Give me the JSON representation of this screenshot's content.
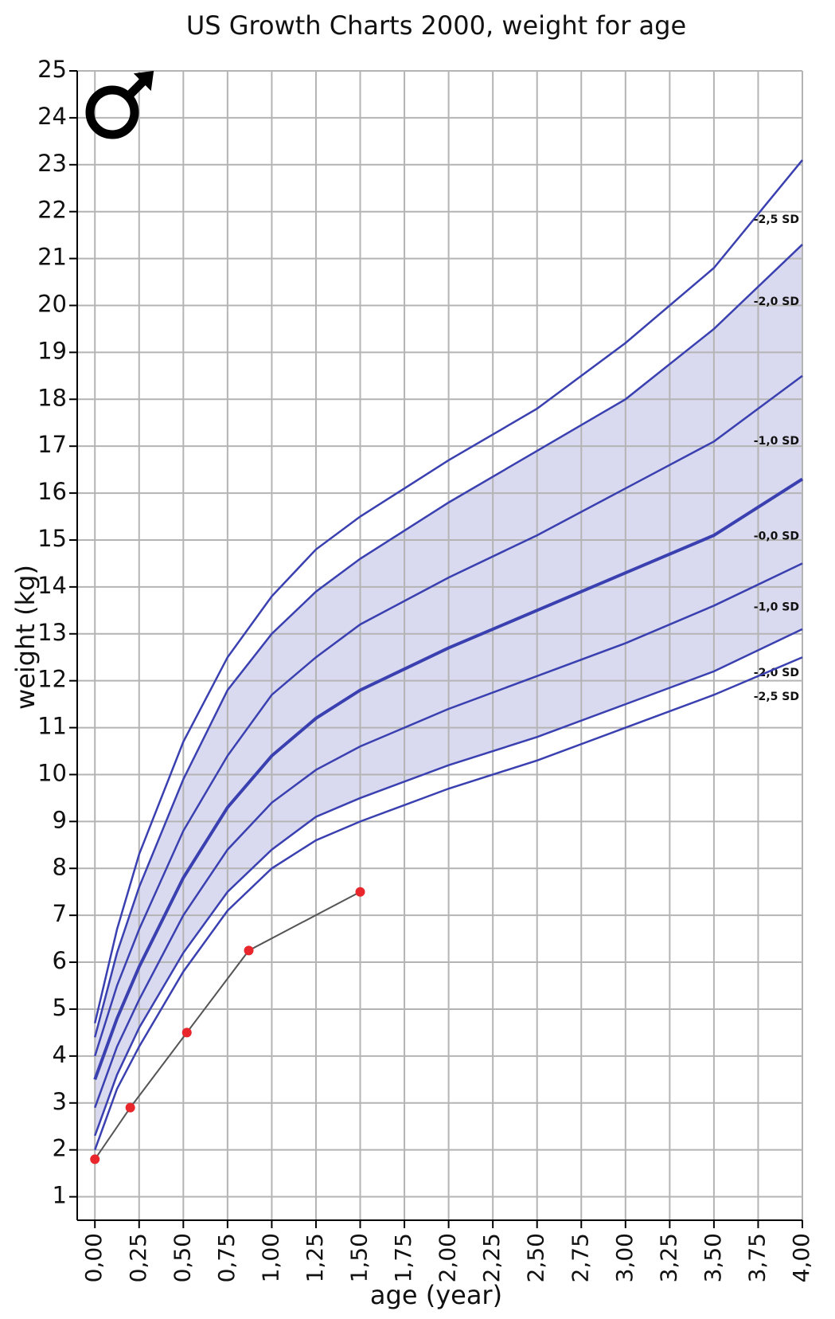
{
  "chart_data": {
    "type": "line",
    "title": "US Growth Charts 2000, weight for age",
    "x_label": "age (year)",
    "y_label": "weight (kg)",
    "xlim": [
      -0.1,
      4
    ],
    "ylim": [
      0.5,
      25
    ],
    "xticks": [
      {
        "value": 0,
        "label": "0,00"
      },
      {
        "value": 0.25,
        "label": "0,25"
      },
      {
        "value": 0.5,
        "label": "0,50"
      },
      {
        "value": 0.75,
        "label": "0,75"
      },
      {
        "value": 1,
        "label": "1,00"
      },
      {
        "value": 1.25,
        "label": "1,25"
      },
      {
        "value": 1.5,
        "label": "1,50"
      },
      {
        "value": 1.75,
        "label": "1,75"
      },
      {
        "value": 2,
        "label": "2,00"
      },
      {
        "value": 2.25,
        "label": "2,25"
      },
      {
        "value": 2.5,
        "label": "2,50"
      },
      {
        "value": 2.75,
        "label": "2,75"
      },
      {
        "value": 3,
        "label": "3,00"
      },
      {
        "value": 3.25,
        "label": "3,25"
      },
      {
        "value": 3.5,
        "label": "3,50"
      },
      {
        "value": 3.75,
        "label": "3,75"
      },
      {
        "value": 4,
        "label": "4,00"
      }
    ],
    "yticks": [
      1,
      2,
      3,
      4,
      5,
      6,
      7,
      8,
      9,
      10,
      11,
      12,
      13,
      14,
      15,
      16,
      17,
      18,
      19,
      20,
      21,
      22,
      23,
      24,
      25
    ],
    "grid": true,
    "fill_between": [
      1,
      5
    ],
    "fill_color": "#d9d9ef",
    "x": [
      0,
      0.125,
      0.25,
      0.5,
      0.75,
      1,
      1.25,
      1.5,
      2,
      2.5,
      3,
      3.5,
      4
    ],
    "series": [
      {
        "name": "-2,5 SD",
        "color": "#3a40b0",
        "values": [
          4.7,
          6.7,
          8.3,
          10.7,
          12.5,
          13.8,
          14.8,
          15.5,
          16.7,
          17.8,
          19.2,
          20.8,
          23.1
        ]
      },
      {
        "name": "-2,0 SD",
        "color": "#3a40b0",
        "values": [
          4.4,
          6.2,
          7.6,
          9.9,
          11.8,
          13.0,
          13.9,
          14.6,
          15.8,
          16.9,
          18.0,
          19.5,
          21.3
        ]
      },
      {
        "name": "-1,0 SD",
        "color": "#3a40b0",
        "values": [
          4.0,
          5.5,
          6.7,
          8.8,
          10.4,
          11.7,
          12.5,
          13.2,
          14.2,
          15.1,
          16.1,
          17.1,
          18.5
        ]
      },
      {
        "name": "-0,0 SD",
        "color": "#3a40b0",
        "width": 4,
        "values": [
          3.5,
          4.8,
          5.9,
          7.8,
          9.3,
          10.4,
          11.2,
          11.8,
          12.7,
          13.5,
          14.3,
          15.1,
          16.3
        ]
      },
      {
        "name": "-1,0 SD",
        "color": "#3a40b0",
        "values": [
          2.9,
          4.2,
          5.2,
          7.0,
          8.4,
          9.4,
          10.1,
          10.6,
          11.4,
          12.1,
          12.8,
          13.6,
          14.5
        ]
      },
      {
        "name": "-2,0 SD",
        "color": "#3a40b0",
        "values": [
          2.3,
          3.6,
          4.6,
          6.2,
          7.5,
          8.4,
          9.1,
          9.5,
          10.2,
          10.8,
          11.5,
          12.2,
          13.1
        ]
      },
      {
        "name": "-2,5 SD",
        "color": "#3a40b0",
        "values": [
          2.0,
          3.3,
          4.2,
          5.8,
          7.1,
          8.0,
          8.6,
          9.0,
          9.7,
          10.3,
          11.0,
          11.7,
          12.5
        ]
      }
    ],
    "patient": {
      "color": "#555555",
      "marker_color": "#e8262b",
      "x": [
        0,
        0.2,
        0.52,
        0.87,
        1.5
      ],
      "values": [
        1.8,
        2.9,
        4.5,
        6.25,
        7.5
      ]
    }
  }
}
